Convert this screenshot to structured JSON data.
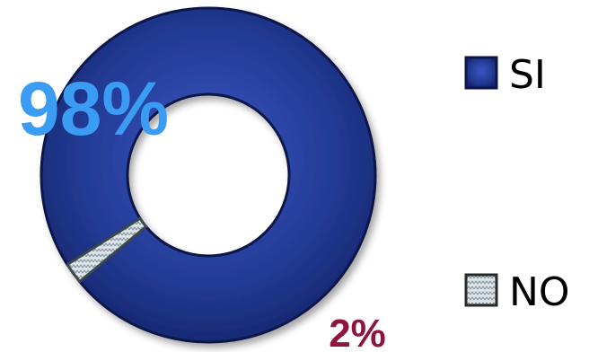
{
  "chart_data": {
    "type": "pie",
    "variant": "donut",
    "categories": [
      "SI",
      "NO"
    ],
    "values": [
      98,
      2
    ],
    "data_labels": [
      "98%",
      "2%"
    ],
    "colors": {
      "SI": "#223a93",
      "NO": "#c8d3da",
      "label_SI": "#3a9cf2",
      "label_NO": "#8c1640"
    },
    "legend_placement": "right",
    "title": ""
  }
}
